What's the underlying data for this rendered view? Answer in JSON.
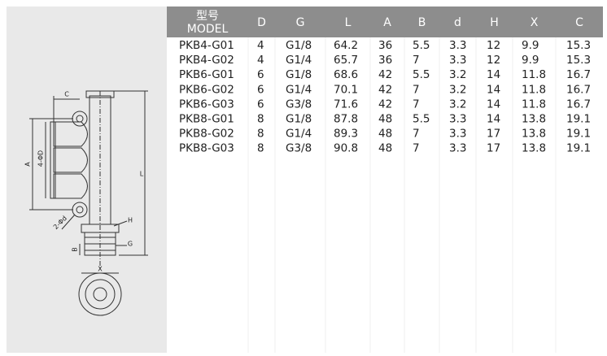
{
  "header": {
    "model_cn": "型号",
    "model_en": "MODEL",
    "columns": [
      "D",
      "G",
      "L",
      "A",
      "B",
      "d",
      "H",
      "X",
      "C"
    ]
  },
  "rows": [
    [
      "PKB4-G01",
      "4",
      "G1/8",
      "64.2",
      "36",
      "5.5",
      "3.3",
      "12",
      "9.9",
      "15.3"
    ],
    [
      "PKB4-G02",
      "4",
      "G1/4",
      "65.7",
      "36",
      "7",
      "3.3",
      "12",
      "9.9",
      "15.3"
    ],
    [
      "PKB6-G01",
      "6",
      "G1/8",
      "68.6",
      "42",
      "5.5",
      "3.2",
      "14",
      "11.8",
      "16.7"
    ],
    [
      "PKB6-G02",
      "6",
      "G1/4",
      "70.1",
      "42",
      "7",
      "3.2",
      "14",
      "11.8",
      "16.7"
    ],
    [
      "PKB6-G03",
      "6",
      "G3/8",
      "71.6",
      "42",
      "7",
      "3.2",
      "14",
      "11.8",
      "16.7"
    ],
    [
      "PKB8-G01",
      "8",
      "G1/8",
      "87.8",
      "48",
      "5.5",
      "3.3",
      "14",
      "13.8",
      "19.1"
    ],
    [
      "PKB8-G02",
      "8",
      "G1/4",
      "89.3",
      "48",
      "7",
      "3.3",
      "17",
      "13.8",
      "19.1"
    ],
    [
      "PKB8-G03",
      "8",
      "G3/8",
      "90.8",
      "48",
      "7",
      "3.3",
      "17",
      "13.8",
      "19.1"
    ]
  ],
  "drawing": {
    "labels": [
      "C",
      "A",
      "4-ΦD",
      "2-Φd",
      "H",
      "B",
      "G",
      "L",
      "X"
    ]
  }
}
